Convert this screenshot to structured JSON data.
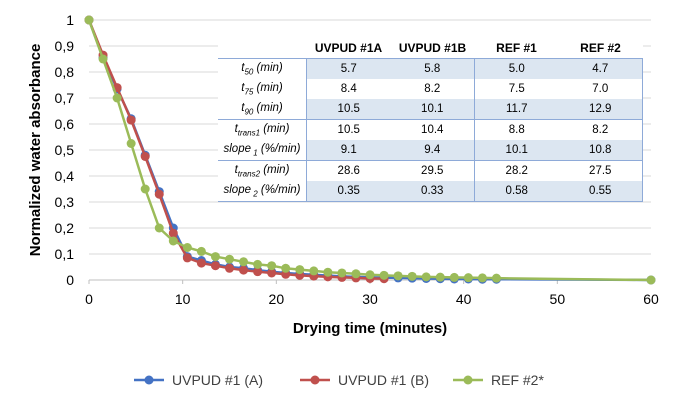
{
  "chart_data": {
    "type": "line",
    "title": "",
    "xlabel": "Drying time (minutes)",
    "ylabel": "Normalized water absorbance",
    "xlim": [
      0,
      60
    ],
    "ylim": [
      0,
      1
    ],
    "x_ticks": [
      "0",
      "10",
      "20",
      "30",
      "40",
      "50",
      "60"
    ],
    "x_tick_values": [
      0,
      10,
      20,
      30,
      40,
      50,
      60
    ],
    "y_ticks": [
      "0",
      "0,1",
      "0,2",
      "0,3",
      "0,4",
      "0,5",
      "0,6",
      "0,7",
      "0,8",
      "0,9",
      "1"
    ],
    "y_tick_values": [
      0,
      0.1,
      0.2,
      0.3,
      0.4,
      0.5,
      0.6,
      0.7,
      0.8,
      0.9,
      1
    ],
    "grid": "horizontal",
    "legend_position": "bottom",
    "series": [
      {
        "name": "UVPUD #1 (A)",
        "color": "#4472c4",
        "x": [
          0,
          1.5,
          3,
          4.5,
          6,
          7.5,
          9,
          10.5,
          12,
          13.5,
          15,
          16.5,
          18,
          19.5,
          21,
          22.5,
          24,
          25.5,
          27,
          28.5,
          30,
          31.5,
          33,
          34.5,
          36,
          37.5,
          39,
          40.5,
          42,
          43.5,
          60
        ],
        "y": [
          1,
          0.855,
          0.735,
          0.62,
          0.48,
          0.34,
          0.2,
          0.09,
          0.075,
          0.06,
          0.05,
          0.045,
          0.038,
          0.032,
          0.027,
          0.023,
          0.02,
          0.017,
          0.014,
          0.012,
          0.01,
          0.009,
          0.008,
          0.007,
          0.006,
          0.005,
          0.004,
          0.004,
          0.003,
          0.003,
          0
        ]
      },
      {
        "name": "UVPUD #1 (B)",
        "color": "#c0504d",
        "x": [
          0,
          1.5,
          3,
          4.5,
          6,
          7.5,
          9,
          10.5,
          12,
          13.5,
          15,
          16.5,
          18,
          19.5,
          21,
          22.5,
          24,
          25.5,
          27,
          28.5,
          30,
          31.5
        ],
        "y": [
          1,
          0.865,
          0.74,
          0.615,
          0.475,
          0.33,
          0.18,
          0.085,
          0.065,
          0.055,
          0.045,
          0.038,
          0.032,
          0.027,
          0.022,
          0.018,
          0.015,
          0.012,
          0.01,
          0.008,
          0.006,
          0.005
        ]
      },
      {
        "name": "REF #2*",
        "color": "#9bbb59",
        "x": [
          0,
          1.5,
          3,
          4.5,
          6,
          7.5,
          9,
          10.5,
          12,
          13.5,
          15,
          16.5,
          18,
          19.5,
          21,
          22.5,
          24,
          25.5,
          27,
          28.5,
          30,
          31.5,
          33,
          34.5,
          36,
          37.5,
          39,
          40.5,
          42,
          43.5,
          60
        ],
        "y": [
          1,
          0.85,
          0.7,
          0.525,
          0.35,
          0.2,
          0.15,
          0.125,
          0.11,
          0.09,
          0.08,
          0.07,
          0.06,
          0.055,
          0.045,
          0.04,
          0.035,
          0.03,
          0.027,
          0.024,
          0.02,
          0.018,
          0.016,
          0.014,
          0.012,
          0.011,
          0.01,
          0.009,
          0.008,
          0.007,
          0
        ]
      }
    ]
  },
  "table": {
    "columns": [
      "UVPUD #1A",
      "UVPUD #1B",
      "REF #1",
      "REF #2"
    ],
    "rows": [
      {
        "label_main": "t",
        "label_sub": "50",
        "label_rest": " (min)",
        "values": [
          "5.7",
          "5.8",
          "5.0",
          "4.7"
        ]
      },
      {
        "label_main": "t",
        "label_sub": "75",
        "label_rest": " (min)",
        "values": [
          "8.4",
          "8.2",
          "7.5",
          "7.0"
        ]
      },
      {
        "label_main": "t",
        "label_sub": "90",
        "label_rest": " (min)",
        "values": [
          "10.5",
          "10.1",
          "11.7",
          "12.9"
        ]
      },
      {
        "label_main": "t",
        "label_sub": "trans1",
        "label_rest": " (min)",
        "values": [
          "10.5",
          "10.4",
          "8.8",
          "8.2"
        ]
      },
      {
        "label_main": "slope",
        "label_sub": " 1",
        "label_rest": " (%/min)",
        "values": [
          "9.1",
          "9.4",
          "10.1",
          "10.8"
        ]
      },
      {
        "label_main": "t",
        "label_sub": "trans2",
        "label_rest": " (min)",
        "values": [
          "28.6",
          "29.5",
          "28.2",
          "27.5"
        ]
      },
      {
        "label_main": "slope",
        "label_sub": " 2",
        "label_rest": " (%/min)",
        "values": [
          "0.35",
          "0.33",
          "0.58",
          "0.55"
        ]
      }
    ]
  }
}
